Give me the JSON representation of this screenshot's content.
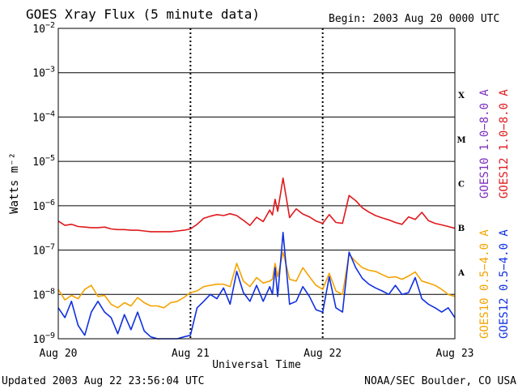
{
  "header": {
    "title": "GOES Xray Flux (5 minute data)",
    "begin": "Begin:  2003 Aug 20 0000 UTC"
  },
  "footer": {
    "updated": "Updated 2003 Aug 22 23:56:04 UTC",
    "credit": "NOAA/SEC Boulder, CO USA"
  },
  "colors": {
    "goes10_long": "#7b2fbf",
    "goes12_long": "#e0191c",
    "goes10_short": "#f5a300",
    "goes12_short": "#1030e0"
  },
  "chart_data": {
    "type": "line",
    "title": "GOES Xray Flux (5 minute data)",
    "xlabel": "Universal Time",
    "ylabel": "Watts m⁻²",
    "yscale": "log",
    "ylim": [
      1e-09,
      0.01
    ],
    "x_unit": "days since 2003 Aug 20 0000 UTC",
    "xlim": [
      0,
      3
    ],
    "x_ticks": [
      {
        "x": 0,
        "label": "Aug 20"
      },
      {
        "x": 1,
        "label": "Aug 21"
      },
      {
        "x": 2,
        "label": "Aug 22"
      },
      {
        "x": 3,
        "label": "Aug 23"
      }
    ],
    "y_ticks": [
      {
        "exp": -9,
        "base": "10",
        "sup": "−9"
      },
      {
        "exp": -8,
        "base": "10",
        "sup": "−8"
      },
      {
        "exp": -7,
        "base": "10",
        "sup": "−7"
      },
      {
        "exp": -6,
        "base": "10",
        "sup": "−6"
      },
      {
        "exp": -5,
        "base": "10",
        "sup": "−5"
      },
      {
        "exp": -4,
        "base": "10",
        "sup": "−4"
      },
      {
        "exp": -3,
        "base": "10",
        "sup": "−3"
      },
      {
        "exp": -2,
        "base": "10",
        "sup": "−2"
      }
    ],
    "flare_classes": [
      {
        "label": "A",
        "exp": -7.5
      },
      {
        "label": "B",
        "exp": -6.5
      },
      {
        "label": "C",
        "exp": -5.5
      },
      {
        "label": "M",
        "exp": -4.5
      },
      {
        "label": "X",
        "exp": -3.5
      }
    ],
    "grid": true,
    "legend": "right",
    "series": [
      {
        "name": "GOES10 1.0−8.0 A",
        "color": "#7b2fbf",
        "x": [],
        "y": []
      },
      {
        "name": "GOES12 1.0−8.0 A",
        "color": "#e0191c",
        "x": [
          0.0,
          0.05,
          0.1,
          0.15,
          0.2,
          0.25,
          0.3,
          0.35,
          0.4,
          0.45,
          0.5,
          0.55,
          0.6,
          0.65,
          0.7,
          0.75,
          0.8,
          0.85,
          0.9,
          0.95,
          1.0,
          1.05,
          1.1,
          1.15,
          1.2,
          1.25,
          1.3,
          1.35,
          1.4,
          1.45,
          1.5,
          1.55,
          1.6,
          1.62,
          1.64,
          1.66,
          1.7,
          1.75,
          1.8,
          1.85,
          1.9,
          1.95,
          2.0,
          2.05,
          2.1,
          2.15,
          2.2,
          2.25,
          2.3,
          2.35,
          2.4,
          2.45,
          2.5,
          2.55,
          2.6,
          2.65,
          2.7,
          2.75,
          2.8,
          2.85,
          2.9,
          2.95,
          3.0
        ],
        "y": [
          4.5e-07,
          3.6e-07,
          3.8e-07,
          3.4e-07,
          3.3e-07,
          3.2e-07,
          3.2e-07,
          3.3e-07,
          3e-07,
          2.9e-07,
          2.9e-07,
          2.8e-07,
          2.8e-07,
          2.7e-07,
          2.6e-07,
          2.6e-07,
          2.6e-07,
          2.6e-07,
          2.7e-07,
          2.8e-07,
          3e-07,
          3.8e-07,
          5.2e-07,
          5.8e-07,
          6.3e-07,
          6e-07,
          6.6e-07,
          6e-07,
          4.7e-07,
          3.6e-07,
          5.5e-07,
          4.4e-07,
          8e-07,
          6.2e-07,
          1.4e-06,
          7.5e-07,
          4.2e-06,
          5.4e-07,
          8.5e-07,
          6.5e-07,
          5.6e-07,
          4.5e-07,
          4e-07,
          6.3e-07,
          4.2e-07,
          4e-07,
          1.7e-06,
          1.3e-06,
          9e-07,
          7.2e-07,
          6e-07,
          5.3e-07,
          4.8e-07,
          4.2e-07,
          3.8e-07,
          5.6e-07,
          4.9e-07,
          7.1e-07,
          4.6e-07,
          4e-07,
          3.7e-07,
          3.4e-07,
          3.1e-07
        ]
      },
      {
        "name": "GOES10 0.5−4.0 A",
        "color": "#f5a300",
        "x": [
          0.0,
          0.05,
          0.1,
          0.15,
          0.2,
          0.25,
          0.3,
          0.35,
          0.4,
          0.45,
          0.5,
          0.55,
          0.6,
          0.65,
          0.7,
          0.75,
          0.8,
          0.85,
          0.9,
          0.95,
          1.0,
          1.05,
          1.1,
          1.15,
          1.2,
          1.25,
          1.3,
          1.35,
          1.4,
          1.45,
          1.5,
          1.55,
          1.6,
          1.62,
          1.64,
          1.66,
          1.7,
          1.75,
          1.8,
          1.85,
          1.9,
          1.95,
          2.0,
          2.05,
          2.1,
          2.15,
          2.2,
          2.25,
          2.3,
          2.35,
          2.4,
          2.45,
          2.5,
          2.55,
          2.6,
          2.65,
          2.7,
          2.75,
          2.8,
          2.85,
          2.9,
          2.95,
          3.0
        ],
        "y": [
          1.3e-08,
          7.5e-09,
          9.5e-09,
          8e-09,
          1.3e-08,
          1.6e-08,
          9e-09,
          9.5e-09,
          6e-09,
          5e-09,
          6.5e-09,
          5.5e-09,
          8.5e-09,
          6.5e-09,
          5.5e-09,
          5.5e-09,
          5e-09,
          6.5e-09,
          7e-09,
          8.5e-09,
          1.1e-08,
          1.2e-08,
          1.5e-08,
          1.6e-08,
          1.7e-08,
          1.7e-08,
          1.5e-08,
          5e-08,
          2e-08,
          1.5e-08,
          2.4e-08,
          1.8e-08,
          2e-08,
          2.2e-08,
          5e-08,
          2.5e-08,
          9e-08,
          2.2e-08,
          2e-08,
          4e-08,
          2.5e-08,
          1.6e-08,
          1.3e-08,
          3e-08,
          1.2e-08,
          1e-08,
          8e-08,
          5.5e-08,
          4e-08,
          3.5e-08,
          3.3e-08,
          2.8e-08,
          2.4e-08,
          2.5e-08,
          2.2e-08,
          2.6e-08,
          3.2e-08,
          2e-08,
          1.8e-08,
          1.6e-08,
          1.3e-08,
          1e-08,
          9e-09
        ]
      },
      {
        "name": "GOES12 0.5−4.0 A",
        "color": "#1030e0",
        "x": [
          0.0,
          0.05,
          0.1,
          0.15,
          0.2,
          0.25,
          0.3,
          0.35,
          0.4,
          0.45,
          0.5,
          0.55,
          0.6,
          0.65,
          0.7,
          0.75,
          0.8,
          0.85,
          0.9,
          0.95,
          1.0,
          1.05,
          1.1,
          1.15,
          1.2,
          1.25,
          1.3,
          1.35,
          1.4,
          1.45,
          1.5,
          1.55,
          1.6,
          1.62,
          1.64,
          1.66,
          1.7,
          1.75,
          1.8,
          1.85,
          1.9,
          1.95,
          2.0,
          2.05,
          2.1,
          2.15,
          2.2,
          2.25,
          2.3,
          2.35,
          2.4,
          2.45,
          2.5,
          2.55,
          2.6,
          2.65,
          2.7,
          2.75,
          2.8,
          2.85,
          2.9,
          2.95,
          3.0
        ],
        "y": [
          5e-09,
          3e-09,
          7e-09,
          2e-09,
          1.2e-09,
          4e-09,
          7e-09,
          4e-09,
          3e-09,
          1.3e-09,
          3.5e-09,
          1.6e-09,
          4e-09,
          1.5e-09,
          1.1e-09,
          1e-09,
          1e-09,
          1e-09,
          1e-09,
          1.1e-09,
          1.2e-09,
          5e-09,
          7e-09,
          1e-08,
          8e-09,
          1.4e-08,
          6e-09,
          3.3e-08,
          1.1e-08,
          7e-09,
          1.6e-08,
          7e-09,
          1.5e-08,
          1e-08,
          4e-08,
          9e-09,
          2.5e-07,
          6e-09,
          7e-09,
          1.5e-08,
          9e-09,
          4.5e-09,
          4e-09,
          2.5e-08,
          5e-09,
          4e-09,
          9e-08,
          4e-08,
          2.3e-08,
          1.7e-08,
          1.4e-08,
          1.2e-08,
          1e-08,
          1.6e-08,
          1e-08,
          1.1e-08,
          2.4e-08,
          8e-09,
          6e-09,
          5e-09,
          4e-09,
          5e-09,
          3e-09
        ]
      }
    ]
  }
}
